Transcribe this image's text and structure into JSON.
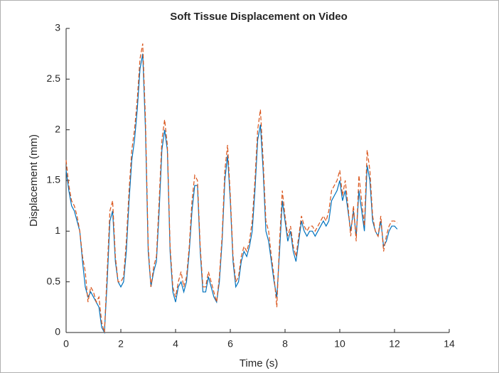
{
  "chart_data": {
    "type": "line",
    "title": "Soft Tissue Displacement on Video",
    "x_label": "Time (s)",
    "y_label": "Displacement (mm)",
    "x": [
      0,
      0.1,
      0.2,
      0.3,
      0.4,
      0.5,
      0.6,
      0.7,
      0.8,
      0.9,
      1,
      1.1,
      1.2,
      1.3,
      1.4,
      1.5,
      1.6,
      1.7,
      1.8,
      1.9,
      2,
      2.1,
      2.2,
      2.3,
      2.4,
      2.5,
      2.6,
      2.7,
      2.8,
      2.9,
      3,
      3.1,
      3.2,
      3.3,
      3.4,
      3.5,
      3.6,
      3.7,
      3.8,
      3.9,
      4,
      4.1,
      4.2,
      4.3,
      4.4,
      4.5,
      4.6,
      4.7,
      4.8,
      4.9,
      5,
      5.1,
      5.2,
      5.3,
      5.4,
      5.5,
      5.6,
      5.7,
      5.8,
      5.9,
      6,
      6.1,
      6.2,
      6.3,
      6.4,
      6.5,
      6.6,
      6.7,
      6.8,
      6.9,
      7,
      7.1,
      7.2,
      7.3,
      7.4,
      7.5,
      7.6,
      7.7,
      7.8,
      7.9,
      8,
      8.1,
      8.2,
      8.3,
      8.4,
      8.5,
      8.6,
      8.7,
      8.8,
      8.9,
      9,
      9.1,
      9.2,
      9.3,
      9.4,
      9.5,
      9.6,
      9.7,
      9.8,
      9.9,
      10,
      10.1,
      10.2,
      10.3,
      10.4,
      10.5,
      10.6,
      10.7,
      10.8,
      10.9,
      11,
      11.1,
      11.2,
      11.3,
      11.4,
      11.5,
      11.6,
      11.7,
      11.8,
      11.9,
      12,
      12.1
    ],
    "series": [
      {
        "color": "#0072bd",
        "dashed": false,
        "values": [
          1.6,
          1.4,
          1.25,
          1.2,
          1.1,
          1.0,
          0.7,
          0.45,
          0.35,
          0.4,
          0.35,
          0.3,
          0.25,
          0.05,
          0.0,
          0.5,
          1.1,
          1.2,
          0.7,
          0.5,
          0.45,
          0.5,
          0.8,
          1.3,
          1.7,
          1.9,
          2.2,
          2.6,
          2.75,
          2.0,
          0.8,
          0.45,
          0.6,
          0.7,
          1.2,
          1.8,
          2.0,
          1.8,
          0.8,
          0.4,
          0.3,
          0.45,
          0.5,
          0.4,
          0.5,
          0.8,
          1.2,
          1.45,
          1.45,
          0.8,
          0.4,
          0.4,
          0.55,
          0.45,
          0.35,
          0.3,
          0.5,
          0.9,
          1.5,
          1.75,
          1.3,
          0.7,
          0.45,
          0.5,
          0.7,
          0.8,
          0.75,
          0.85,
          1.0,
          1.4,
          1.9,
          2.05,
          1.6,
          1.0,
          0.9,
          0.7,
          0.5,
          0.35,
          0.8,
          1.3,
          1.1,
          0.9,
          1.0,
          0.8,
          0.7,
          0.9,
          1.1,
          1.0,
          0.95,
          1.0,
          1.0,
          0.95,
          1.0,
          1.05,
          1.1,
          1.05,
          1.1,
          1.3,
          1.35,
          1.4,
          1.5,
          1.3,
          1.4,
          1.2,
          1.0,
          1.2,
          0.95,
          1.4,
          1.2,
          1.0,
          1.65,
          1.5,
          1.1,
          1.0,
          0.95,
          1.1,
          0.85,
          0.9,
          1.0,
          1.05,
          1.05,
          1.02
        ]
      },
      {
        "color": "#d95319",
        "dashed": true,
        "values": [
          1.7,
          1.45,
          1.3,
          1.25,
          1.15,
          1.0,
          0.75,
          0.6,
          0.3,
          0.45,
          0.4,
          0.3,
          0.35,
          0.1,
          0.0,
          0.6,
          1.2,
          1.3,
          0.75,
          0.5,
          0.5,
          0.55,
          0.9,
          1.4,
          1.8,
          2.0,
          2.3,
          2.7,
          2.85,
          2.1,
          0.85,
          0.45,
          0.65,
          0.75,
          1.3,
          1.9,
          2.1,
          1.85,
          0.85,
          0.45,
          0.35,
          0.5,
          0.6,
          0.45,
          0.55,
          0.85,
          1.3,
          1.55,
          1.5,
          0.85,
          0.45,
          0.45,
          0.6,
          0.5,
          0.4,
          0.3,
          0.55,
          0.95,
          1.6,
          1.85,
          1.35,
          0.75,
          0.5,
          0.55,
          0.75,
          0.85,
          0.8,
          0.9,
          1.1,
          1.5,
          2.0,
          2.2,
          1.7,
          1.1,
          1.0,
          0.75,
          0.55,
          0.25,
          0.9,
          1.4,
          1.15,
          0.95,
          1.05,
          0.85,
          0.75,
          0.95,
          1.15,
          1.05,
          1.0,
          1.05,
          1.05,
          1.0,
          1.05,
          1.1,
          1.15,
          1.1,
          1.2,
          1.4,
          1.45,
          1.5,
          1.6,
          1.35,
          1.5,
          1.25,
          0.95,
          1.25,
          0.9,
          1.55,
          1.3,
          1.05,
          1.8,
          1.6,
          1.15,
          1.0,
          0.95,
          1.15,
          0.8,
          0.95,
          1.05,
          1.1,
          1.1,
          1.08
        ]
      }
    ],
    "xlim": [
      0,
      14
    ],
    "xticks": [
      0,
      2,
      4,
      6,
      8,
      10,
      12,
      14
    ],
    "ylim": [
      0,
      3
    ],
    "yticks": [
      0,
      0.5,
      1,
      1.5,
      2,
      2.5,
      3
    ]
  }
}
